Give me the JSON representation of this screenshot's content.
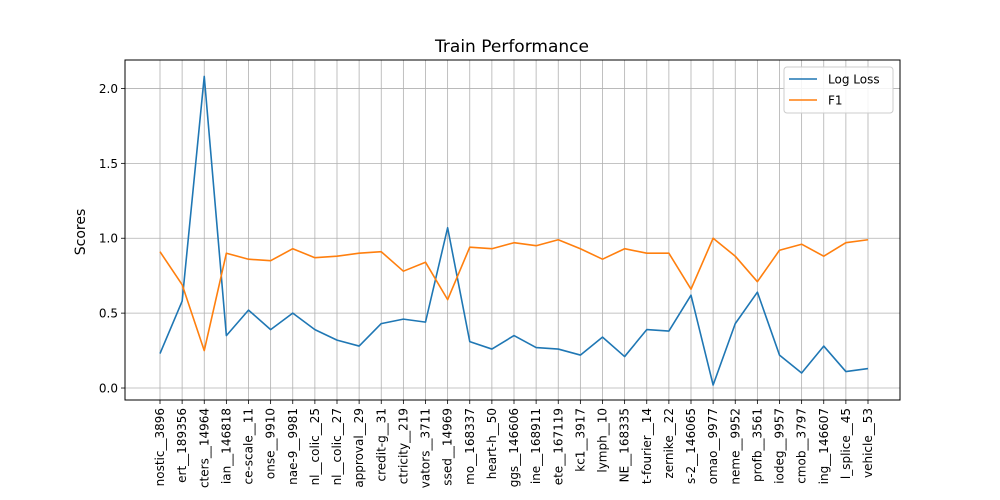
{
  "chart_data": {
    "type": "line",
    "title": "Train Performance",
    "xlabel": "",
    "ylabel": "Scores",
    "ylim": [
      -0.08,
      2.19
    ],
    "yticks": [
      0.0,
      0.5,
      1.0,
      1.5,
      2.0
    ],
    "ytick_labels": [
      "0.0",
      "0.5",
      "1.0",
      "1.5",
      "2.0"
    ],
    "grid": true,
    "legend_position": "top-right",
    "categories": [
      "nostic__3896",
      "ert__189356",
      "cters__14964",
      "ian__146818",
      "ce-scale__11",
      "onse__9910",
      "nae-9__9981",
      "nl__colic__25",
      "nl__colic__27",
      "approval__29",
      "credit-g__31",
      "ctricity__219",
      "vators__3711",
      "ssed__14969",
      "mo__168337",
      "heart-h__50",
      "ggs__146606",
      "ine__168911",
      "ete__167119",
      "kc1__3917",
      "lymph__10",
      "NE__168335",
      "t-fourier__14",
      "zernike__22",
      "s-2__146065",
      "omao__9977",
      "neme__9952",
      "profb__3561",
      "iodeg__9957",
      "cmob__3797",
      "ing__146607",
      "l_splice__45",
      "vehicle__53"
    ],
    "series": [
      {
        "name": "Log Loss",
        "color": "#1f77b4",
        "values": [
          0.23,
          0.58,
          2.08,
          0.35,
          0.52,
          0.39,
          0.5,
          0.39,
          0.32,
          0.28,
          0.43,
          0.46,
          0.44,
          1.07,
          0.31,
          0.26,
          0.35,
          0.27,
          0.26,
          0.22,
          0.34,
          0.21,
          0.39,
          0.38,
          0.62,
          0.02,
          0.43,
          0.64,
          0.22,
          0.1,
          0.28,
          0.11,
          0.13
        ]
      },
      {
        "name": "F1",
        "color": "#ff7f0e",
        "values": [
          0.91,
          0.69,
          0.25,
          0.9,
          0.86,
          0.85,
          0.93,
          0.87,
          0.88,
          0.9,
          0.91,
          0.78,
          0.84,
          0.59,
          0.94,
          0.93,
          0.97,
          0.95,
          0.99,
          0.93,
          0.86,
          0.93,
          0.9,
          0.9,
          0.66,
          1.0,
          0.88,
          0.71,
          0.92,
          0.96,
          0.88,
          0.97,
          0.99
        ]
      }
    ]
  }
}
